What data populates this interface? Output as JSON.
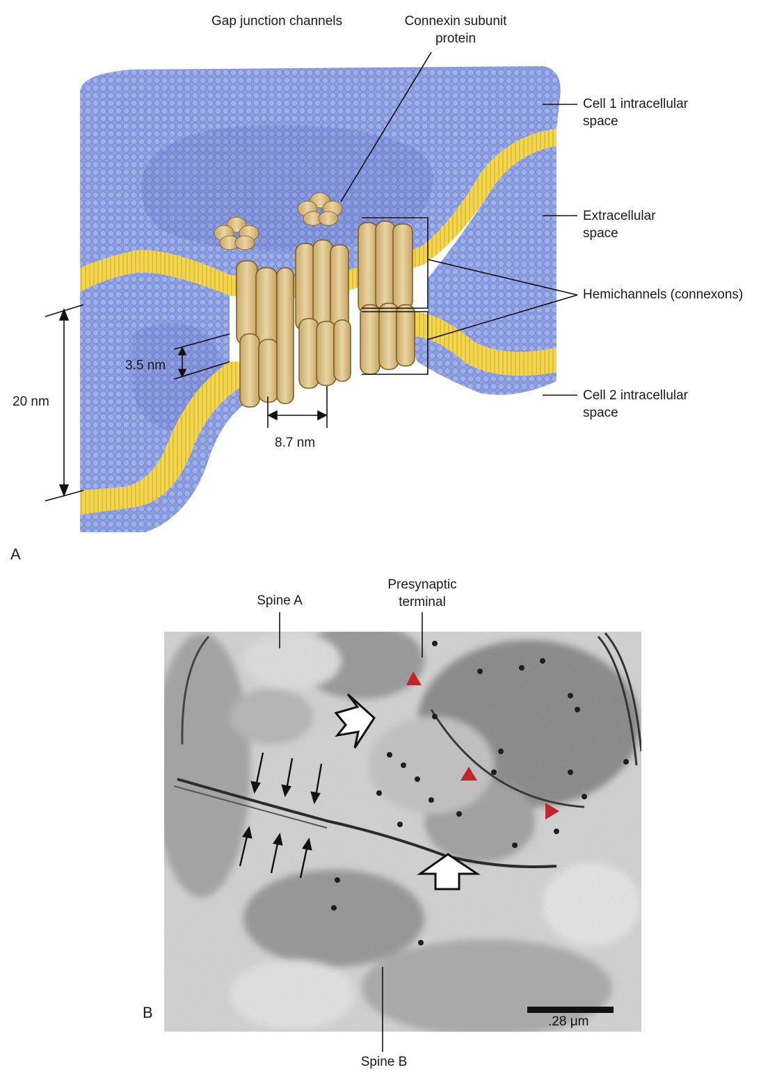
{
  "panelA": {
    "letter": "A",
    "labels": {
      "gap_junction_channels": "Gap junction channels",
      "connexin_line1": "Connexin subunit",
      "connexin_line2": "protein",
      "cell1_line1": "Cell 1 intracellular",
      "cell1_line2": "space",
      "extracellular_line1": "Extracellular",
      "extracellular_line2": "space",
      "hemichannels": "Hemichannels (connexons)",
      "cell2_line1": "Cell 2 intracellular",
      "cell2_line2": "space",
      "dim_20nm": "20 nm",
      "dim_3_5nm": "3.5 nm",
      "dim_8_7nm": "8.7 nm"
    },
    "colors": {
      "membrane_blue": "#8e9fe0",
      "membrane_dark": "#6b7ccc",
      "lipid_yellow": "#f3d64e",
      "connexon_tan": "#d9c08c"
    }
  },
  "panelB": {
    "letter": "B",
    "labels": {
      "spine_a": "Spine A",
      "presynaptic_line1": "Presynaptic",
      "presynaptic_line2": "terminal",
      "spine_b": "Spine B",
      "scale": ".28 μm"
    },
    "colors": {
      "arrowhead_red": "#c0262d"
    }
  }
}
